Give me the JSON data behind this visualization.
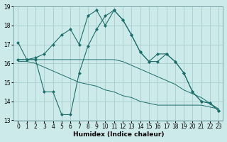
{
  "xlabel": "Humidex (Indice chaleur)",
  "xlim": [
    -0.5,
    23.5
  ],
  "ylim": [
    13,
    19
  ],
  "yticks": [
    13,
    14,
    15,
    16,
    17,
    18,
    19
  ],
  "xticks": [
    0,
    1,
    2,
    3,
    4,
    5,
    6,
    7,
    8,
    9,
    10,
    11,
    12,
    13,
    14,
    15,
    16,
    17,
    18,
    19,
    20,
    21,
    22,
    23
  ],
  "bg_color": "#cdeaea",
  "grid_color": "#aacccc",
  "line_color": "#1c6e6a",
  "line1_x": [
    0,
    1,
    2,
    3,
    4,
    5,
    6,
    7,
    8,
    9,
    10,
    11,
    12,
    13,
    14,
    15,
    16,
    17,
    18,
    19,
    20,
    21,
    22,
    23
  ],
  "line1_y": [
    17.1,
    16.2,
    16.3,
    16.5,
    17.0,
    17.5,
    17.8,
    17.0,
    18.5,
    18.8,
    18.0,
    18.8,
    18.3,
    17.5,
    16.6,
    16.1,
    16.5,
    16.5,
    16.1,
    15.5,
    14.5,
    14.0,
    13.9,
    13.5
  ],
  "line2_x": [
    0,
    1,
    2,
    3,
    4,
    5,
    6,
    7,
    8,
    9,
    10,
    11,
    12,
    13,
    14,
    15,
    16,
    17,
    18,
    19,
    20,
    21,
    22,
    23
  ],
  "line2_y": [
    16.2,
    16.2,
    16.2,
    16.2,
    16.2,
    16.2,
    16.2,
    16.2,
    16.2,
    16.2,
    16.2,
    16.2,
    16.1,
    15.9,
    15.7,
    15.5,
    15.3,
    15.1,
    14.9,
    14.6,
    14.4,
    14.2,
    13.9,
    13.6
  ],
  "line3_x": [
    0,
    1,
    2,
    3,
    4,
    5,
    6,
    7,
    8,
    9,
    10,
    11,
    12,
    13,
    14,
    15,
    16,
    17,
    18,
    19,
    20,
    21,
    22,
    23
  ],
  "line3_y": [
    16.2,
    16.2,
    16.2,
    14.5,
    14.5,
    13.3,
    13.3,
    15.5,
    16.9,
    17.8,
    18.5,
    18.8,
    18.3,
    17.5,
    16.6,
    16.1,
    16.1,
    16.5,
    16.1,
    15.5,
    14.5,
    14.0,
    13.9,
    13.5
  ],
  "line4_x": [
    0,
    1,
    2,
    3,
    4,
    5,
    6,
    7,
    8,
    9,
    10,
    11,
    12,
    13,
    14,
    15,
    16,
    17,
    18,
    19,
    20,
    21,
    22,
    23
  ],
  "line4_y": [
    16.1,
    16.1,
    16.0,
    15.8,
    15.6,
    15.4,
    15.2,
    15.0,
    14.9,
    14.8,
    14.6,
    14.5,
    14.3,
    14.2,
    14.0,
    13.9,
    13.8,
    13.8,
    13.8,
    13.8,
    13.8,
    13.8,
    13.7,
    13.6
  ],
  "marker_size": 2.5
}
